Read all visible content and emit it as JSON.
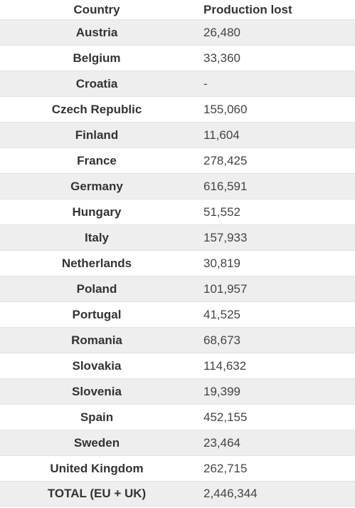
{
  "table": {
    "headers": {
      "country": "Country",
      "production": "Production lost"
    },
    "rows": [
      {
        "country": "Austria",
        "production": "26,480"
      },
      {
        "country": "Belgium",
        "production": "33,360"
      },
      {
        "country": "Croatia",
        "production": "-"
      },
      {
        "country": "Czech Republic",
        "production": "155,060"
      },
      {
        "country": "Finland",
        "production": "11,604"
      },
      {
        "country": "France",
        "production": "278,425"
      },
      {
        "country": "Germany",
        "production": "616,591"
      },
      {
        "country": "Hungary",
        "production": "51,552"
      },
      {
        "country": "Italy",
        "production": "157,933"
      },
      {
        "country": "Netherlands",
        "production": "30,819"
      },
      {
        "country": "Poland",
        "production": "101,957"
      },
      {
        "country": "Portugal",
        "production": "41,525"
      },
      {
        "country": "Romania",
        "production": "68,673"
      },
      {
        "country": "Slovakia",
        "production": "114,632"
      },
      {
        "country": "Slovenia",
        "production": "19,399"
      },
      {
        "country": "Spain",
        "production": "452,155"
      },
      {
        "country": "Sweden",
        "production": "23,464"
      },
      {
        "country": "United Kingdom",
        "production": "262,715"
      },
      {
        "country": "TOTAL (EU + UK)",
        "production": "2,446,344"
      }
    ]
  }
}
